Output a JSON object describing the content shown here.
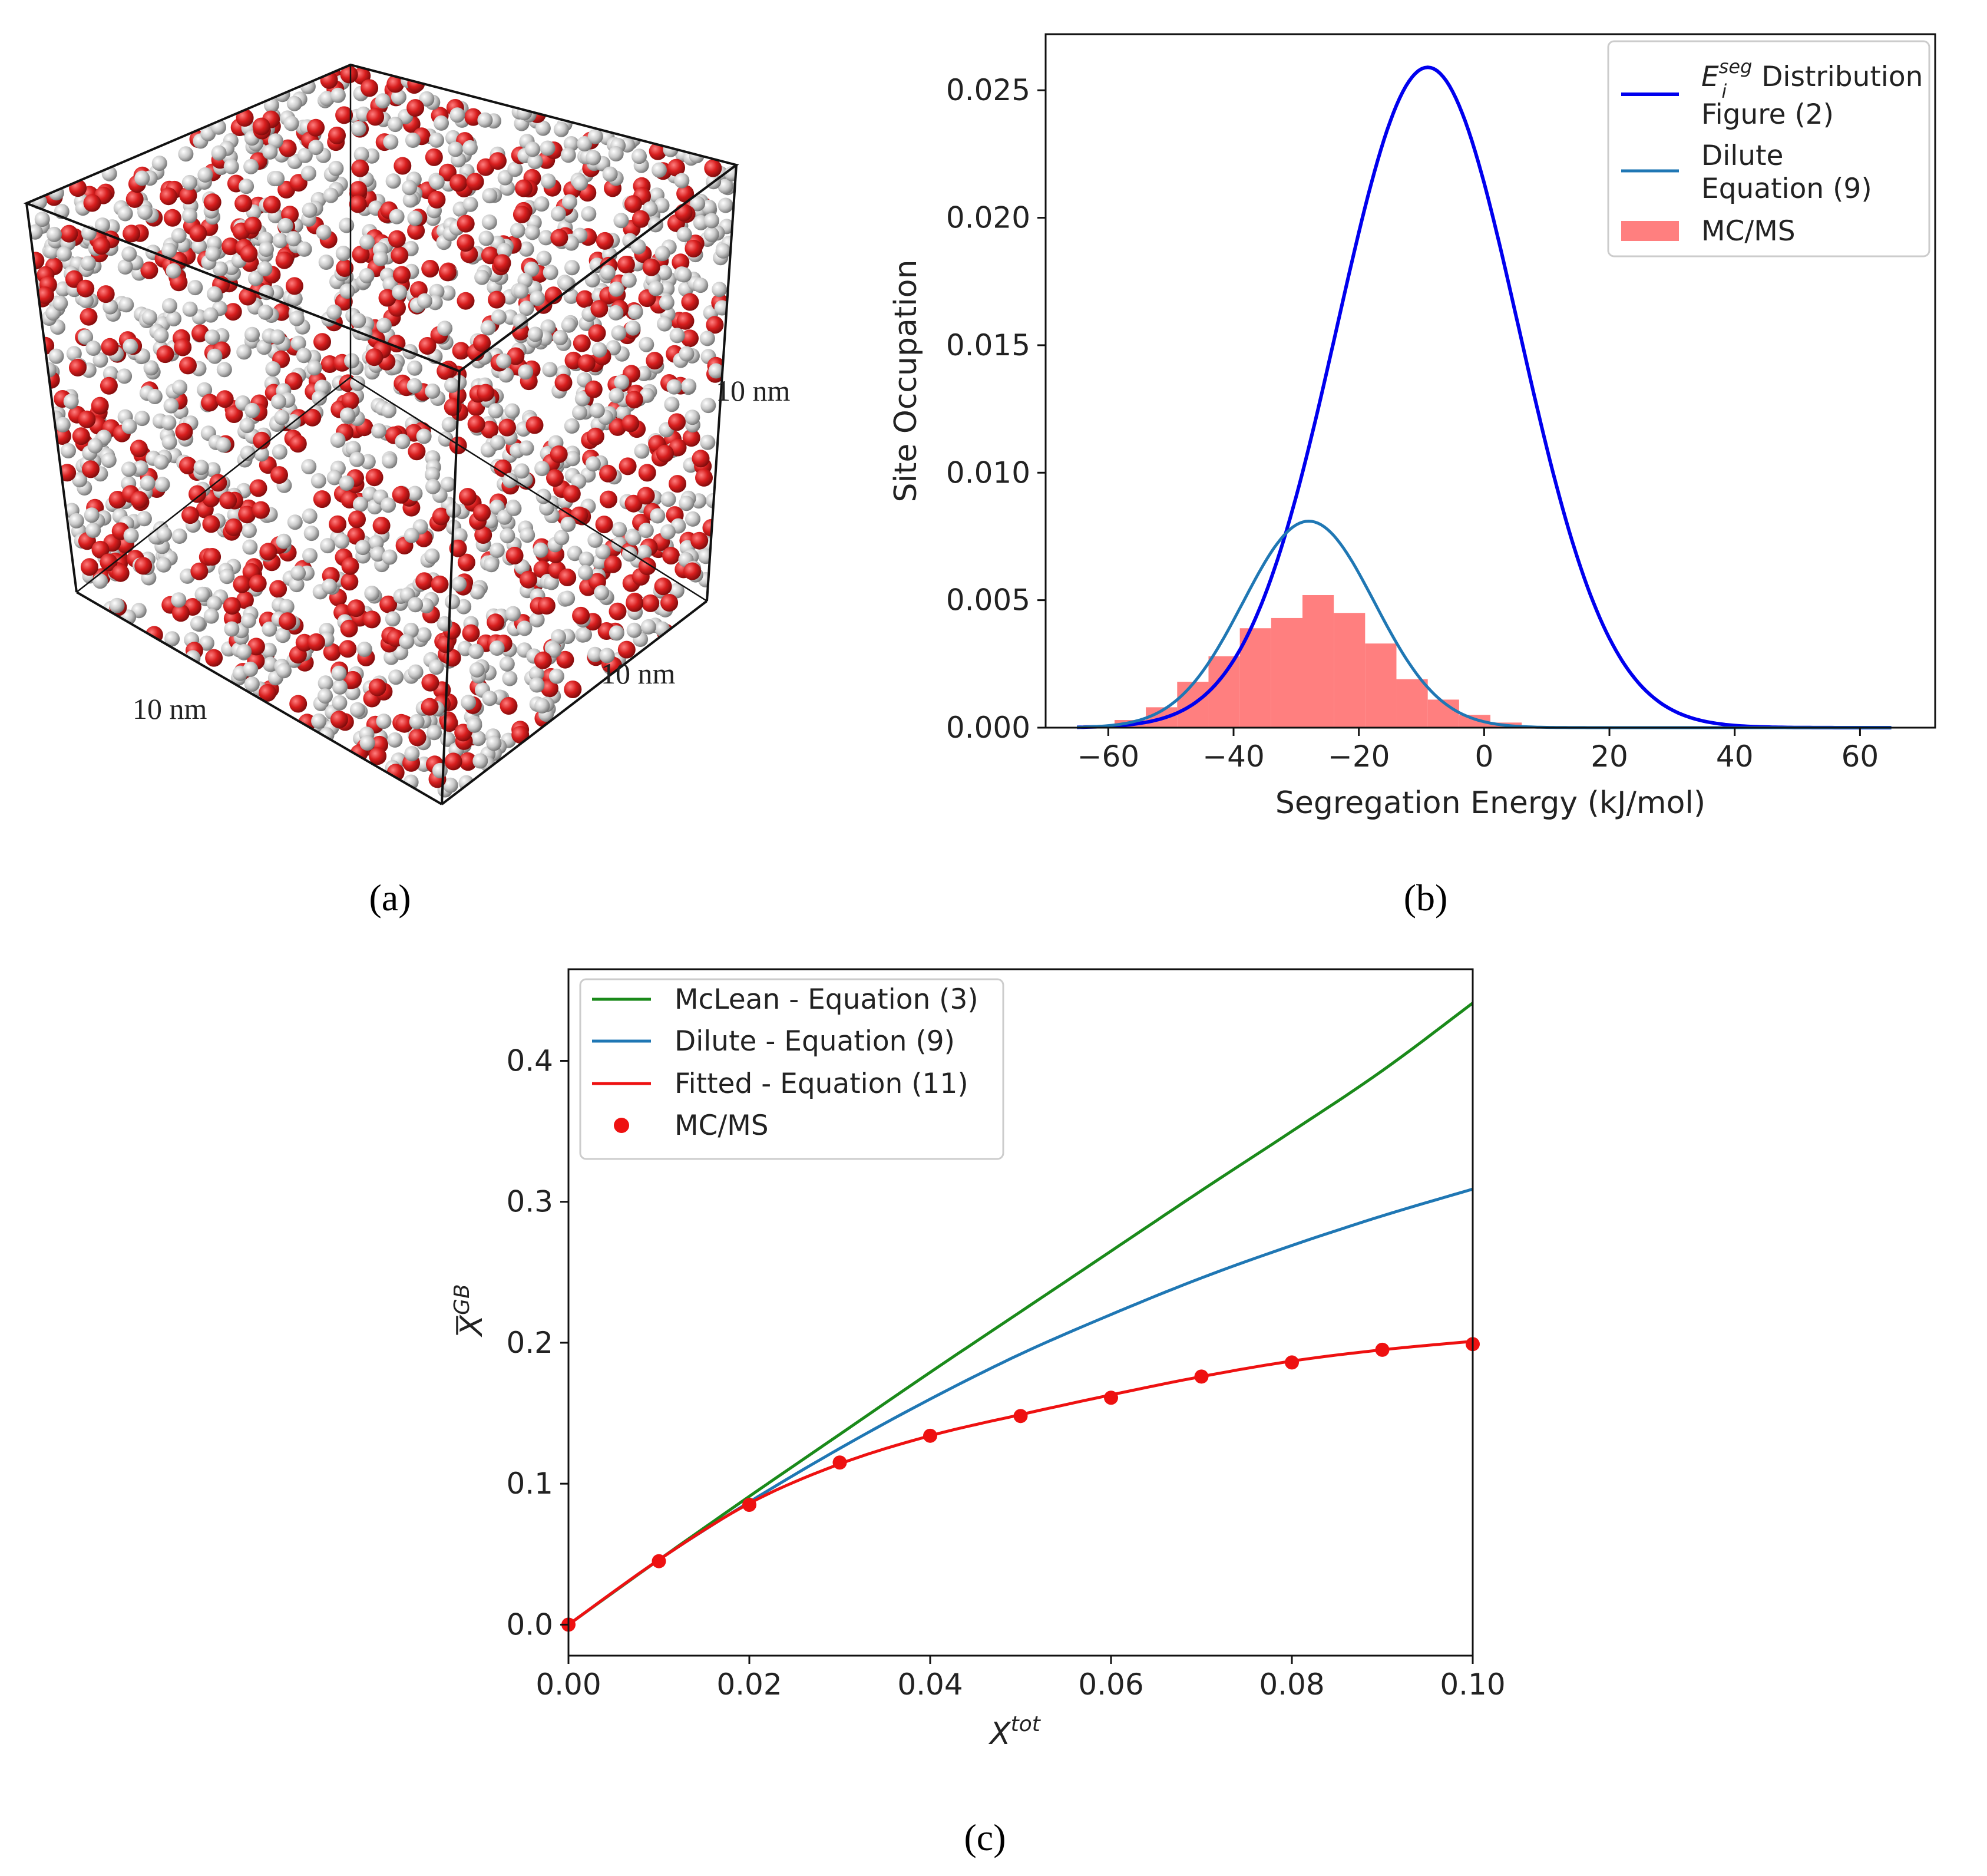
{
  "panels": {
    "a": {
      "label": "(a)",
      "dims": [
        "10 nm",
        "10 nm",
        "10 nm"
      ]
    },
    "b": {
      "label": "(b)"
    },
    "c": {
      "label": "(c)"
    }
  },
  "colors": {
    "atom_red": "#d81e1e",
    "atom_grey": "#c8c8c8",
    "blue": "#0000ee",
    "steelblue": "#1f77b4",
    "hist": "#ff7f7f",
    "green": "#1a8a1a",
    "red": "#ee1111"
  },
  "chart_data": [
    {
      "id": "b",
      "type": "line",
      "xlabel": "Segregation Energy (kJ/mol)",
      "ylabel": "Site Occupation",
      "xlim": [
        -70,
        72
      ],
      "ylim": [
        0,
        0.0272
      ],
      "xticks": [
        -60,
        -40,
        -20,
        0,
        20,
        40,
        60
      ],
      "xtick_labels": [
        "−60",
        "−40",
        "−20",
        "0",
        "20",
        "40",
        "60"
      ],
      "yticks": [
        0,
        0.005,
        0.01,
        0.015,
        0.02,
        0.025
      ],
      "ytick_labels": [
        "0.000",
        "0.005",
        "0.010",
        "0.015",
        "0.020",
        "0.025"
      ],
      "legend": [
        {
          "label_main": "E",
          "label_sup": "seg",
          "label_sub": "i",
          "label_rest": " Distribution",
          "label_line2": "Figure (2)",
          "kind": "line",
          "color": "#0000ee"
        },
        {
          "label": "Dilute",
          "label_line2": "Equation (9)",
          "kind": "line",
          "color": "#1f77b4"
        },
        {
          "label": "MC/MS",
          "kind": "patch",
          "color": "#ff7f7f"
        }
      ],
      "series": [
        {
          "name": "Distribution Figure (2)",
          "kind": "gaussian",
          "mean": -9,
          "peak": 0.0259,
          "sigma": 14.5,
          "xrange": [
            -65,
            65
          ],
          "color": "#0000ee"
        },
        {
          "name": "Dilute Equation (9)",
          "kind": "gaussian",
          "mean": -28,
          "peak": 0.0081,
          "sigma": 10.5,
          "xrange": [
            -65,
            65
          ],
          "color": "#1f77b4"
        }
      ],
      "histogram": {
        "name": "MC/MS",
        "bin_edges": [
          -64,
          -59,
          -54,
          -49,
          -44,
          -39,
          -34,
          -29,
          -24,
          -19,
          -14,
          -9,
          -4,
          1,
          6
        ],
        "values": [
          0.0001,
          0.0003,
          0.0008,
          0.0018,
          0.0028,
          0.0039,
          0.0043,
          0.0052,
          0.0045,
          0.0033,
          0.0019,
          0.0011,
          0.0005,
          0.0002
        ]
      }
    },
    {
      "id": "c",
      "type": "line",
      "xlabel_main": "X",
      "xlabel_sup": "tot",
      "ylabel_main": "X",
      "ylabel_sup": "GB",
      "xlim": [
        0,
        0.1
      ],
      "ylim": [
        -0.022,
        0.465
      ],
      "xticks": [
        0,
        0.02,
        0.04,
        0.06,
        0.08,
        0.1
      ],
      "xtick_labels": [
        "0.00",
        "0.02",
        "0.04",
        "0.06",
        "0.08",
        "0.10"
      ],
      "yticks": [
        0,
        0.1,
        0.2,
        0.3,
        0.4
      ],
      "ytick_labels": [
        "0.0",
        "0.1",
        "0.2",
        "0.3",
        "0.4"
      ],
      "legend": [
        {
          "label": "McLean - Equation (3)",
          "kind": "line",
          "color": "#1a8a1a"
        },
        {
          "label": "Dilute - Equation (9)",
          "kind": "line",
          "color": "#1f77b4"
        },
        {
          "label": "Fitted - Equation (11)",
          "kind": "line",
          "color": "#ee1111"
        },
        {
          "label": "MC/MS",
          "kind": "point",
          "color": "#ee1111"
        }
      ],
      "series": [
        {
          "name": "McLean - Equation (3)",
          "color": "#1a8a1a",
          "x": [
            0,
            0.01,
            0.02,
            0.03,
            0.04,
            0.05,
            0.06,
            0.07,
            0.08,
            0.09,
            0.1
          ],
          "y": [
            0,
            0.046,
            0.091,
            0.135,
            0.179,
            0.222,
            0.265,
            0.308,
            0.35,
            0.393,
            0.441
          ]
        },
        {
          "name": "Dilute - Equation (9)",
          "color": "#1f77b4",
          "x": [
            0,
            0.01,
            0.02,
            0.03,
            0.04,
            0.05,
            0.06,
            0.07,
            0.08,
            0.09,
            0.1
          ],
          "y": [
            0,
            0.046,
            0.087,
            0.125,
            0.16,
            0.192,
            0.22,
            0.246,
            0.269,
            0.29,
            0.309
          ]
        },
        {
          "name": "Fitted - Equation (11)",
          "color": "#ee1111",
          "x": [
            0,
            0.01,
            0.02,
            0.03,
            0.04,
            0.05,
            0.06,
            0.07,
            0.08,
            0.09,
            0.1
          ],
          "y": [
            0,
            0.046,
            0.086,
            0.114,
            0.134,
            0.149,
            0.163,
            0.176,
            0.187,
            0.195,
            0.201
          ]
        },
        {
          "name": "MC/MS",
          "kind": "scatter",
          "color": "#ee1111",
          "x": [
            0,
            0.01,
            0.02,
            0.03,
            0.04,
            0.05,
            0.06,
            0.07,
            0.08,
            0.09,
            0.1
          ],
          "y": [
            0,
            0.045,
            0.085,
            0.115,
            0.134,
            0.148,
            0.161,
            0.176,
            0.186,
            0.195,
            0.199
          ]
        }
      ]
    }
  ]
}
